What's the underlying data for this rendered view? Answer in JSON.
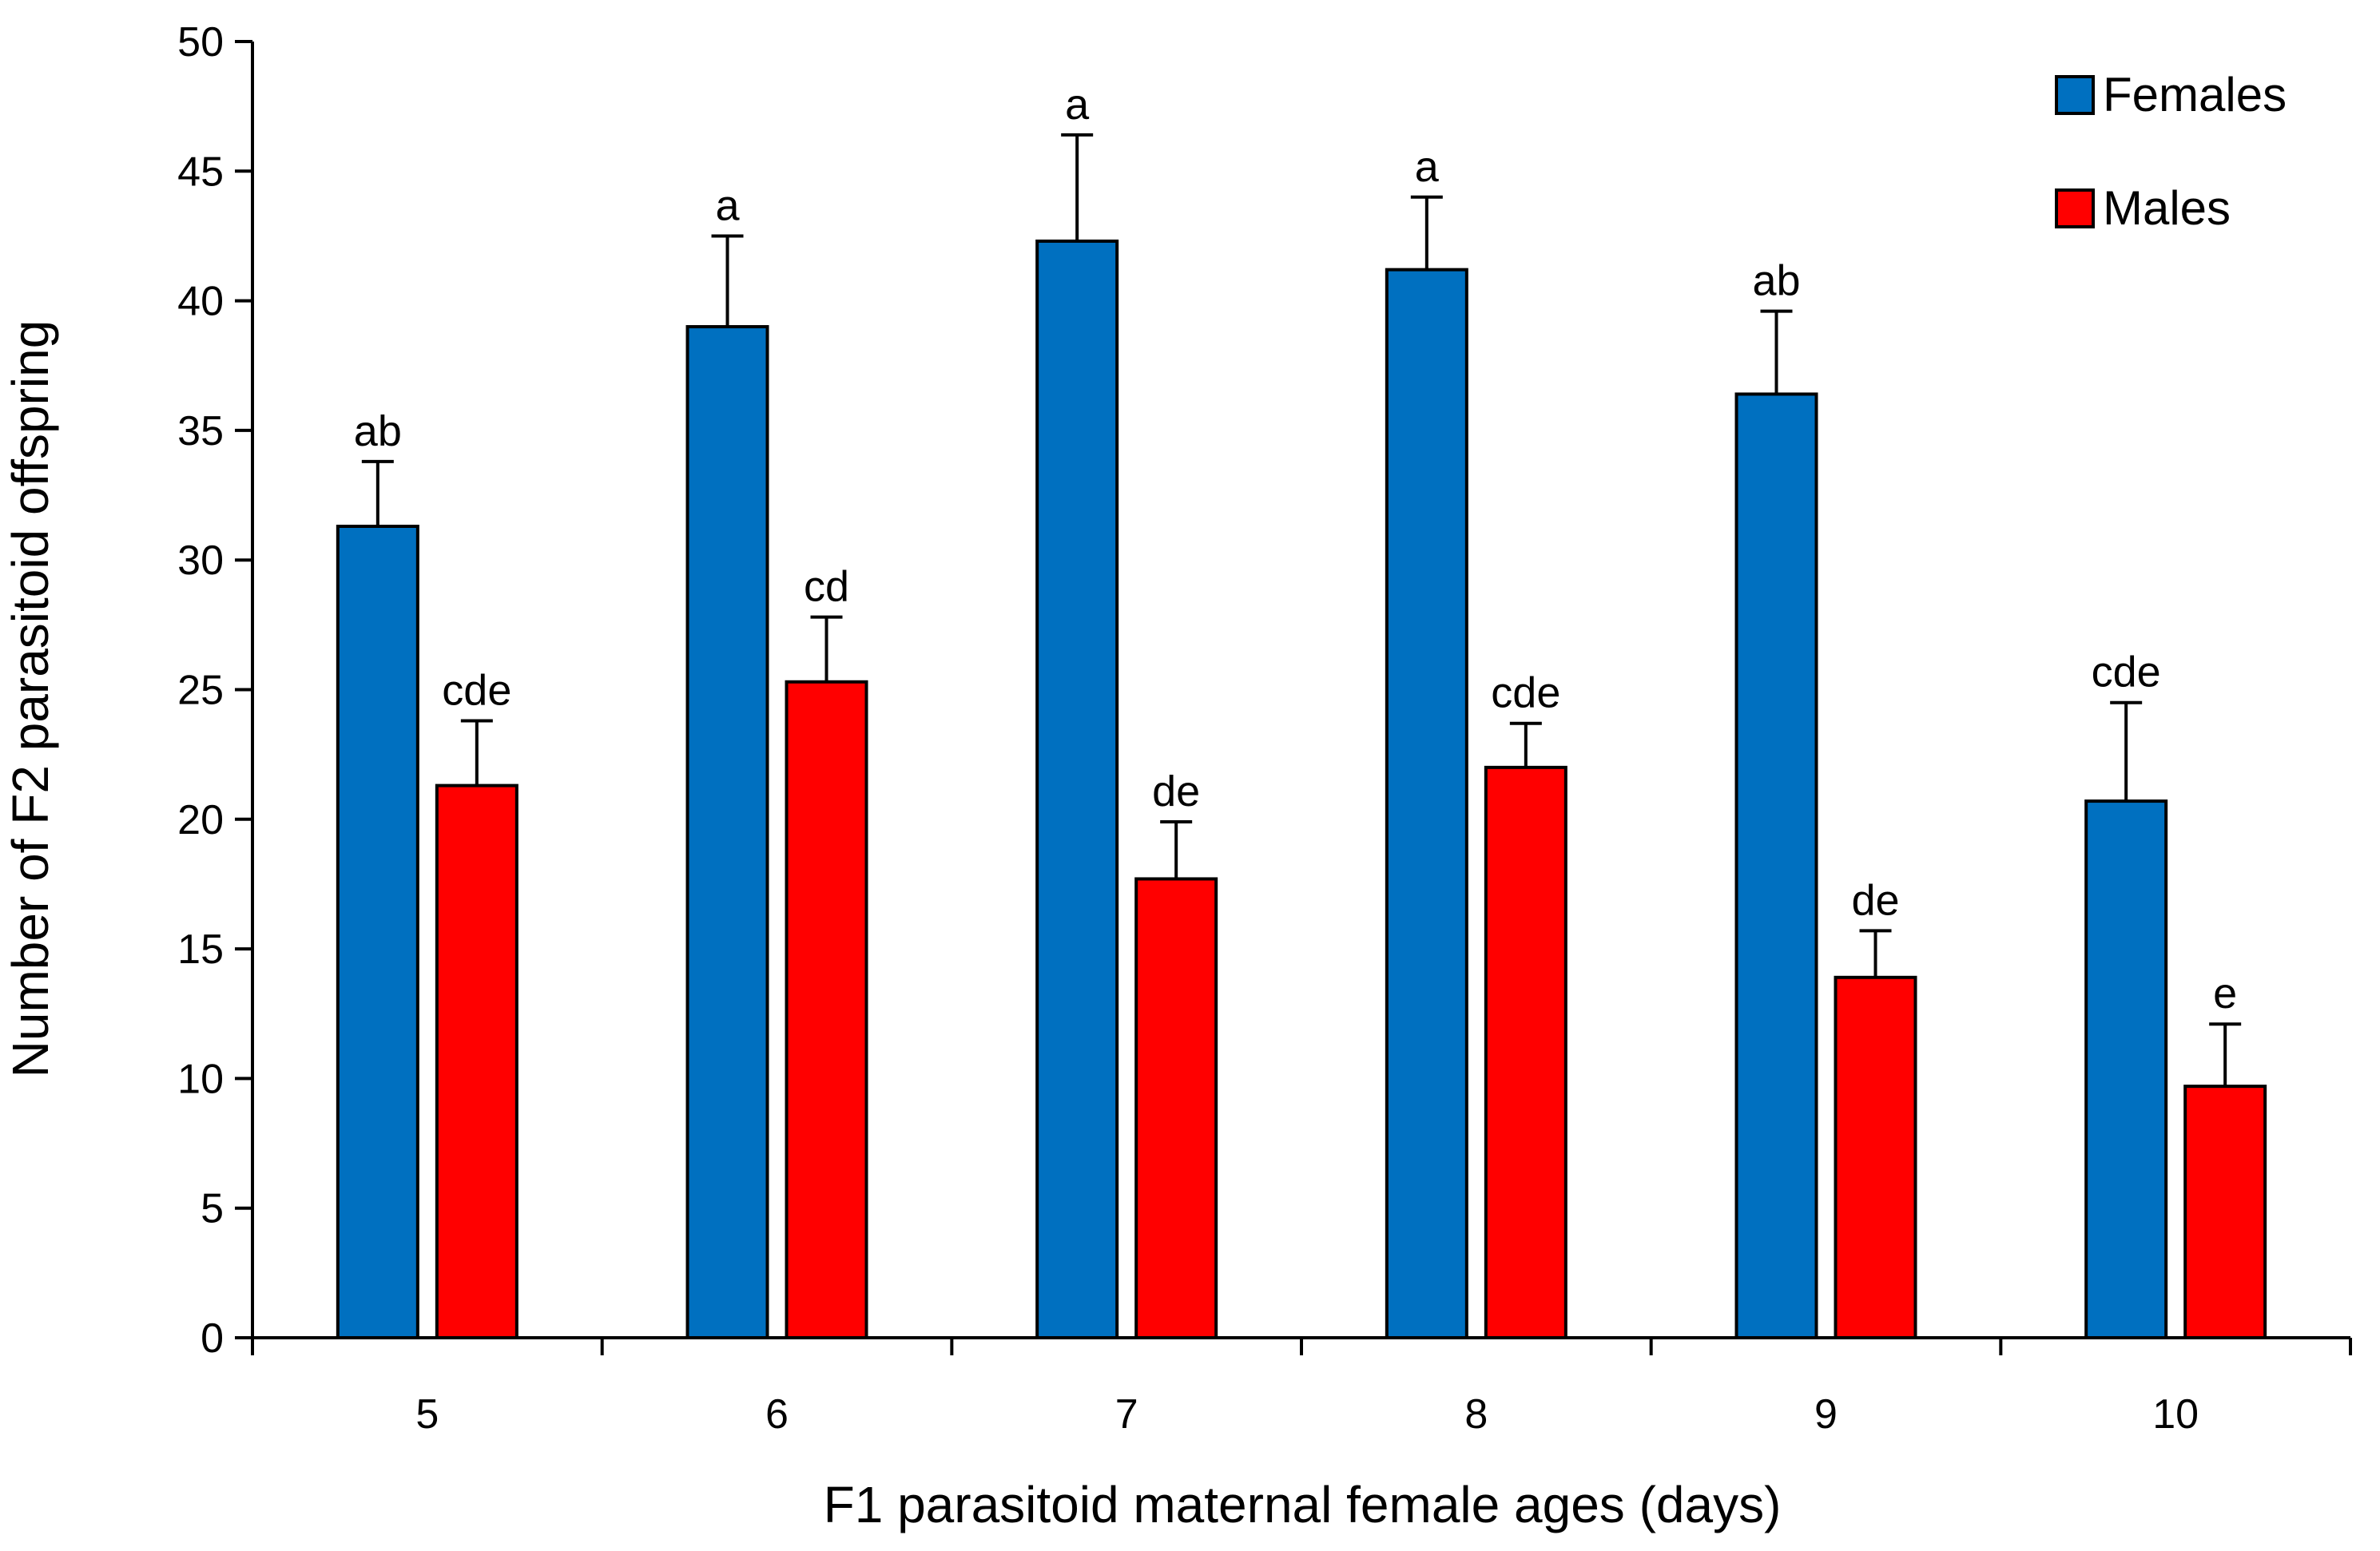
{
  "chart_data": {
    "type": "bar",
    "title": "",
    "xlabel": "F1 parasitoid maternal female ages (days)",
    "ylabel": "Number of F2 parasitoid offspring",
    "ylim": [
      0,
      50
    ],
    "yticks": [
      "0",
      "5",
      "10",
      "15",
      "20",
      "25",
      "30",
      "35",
      "40",
      "45",
      "50"
    ],
    "categories": [
      "5",
      "6",
      "7",
      "8",
      "9",
      "10"
    ],
    "grid": false,
    "legend_position": "top-right",
    "series": [
      {
        "name": "Females",
        "color": "#0070C0",
        "values": [
          31.3,
          39.0,
          42.3,
          41.2,
          36.4,
          20.7
        ],
        "errors": [
          2.5,
          3.5,
          4.1,
          2.8,
          3.2,
          3.8
        ],
        "labels": [
          "ab",
          "a",
          "a",
          "a",
          "ab",
          "cde"
        ]
      },
      {
        "name": "Males",
        "color": "#FF0000",
        "values": [
          21.3,
          25.3,
          17.7,
          22.0,
          13.9,
          9.7
        ],
        "errors": [
          2.5,
          2.5,
          2.2,
          1.7,
          1.8,
          2.4
        ],
        "labels": [
          "cde",
          "cd",
          "de",
          "cde",
          "de",
          "e"
        ]
      }
    ]
  }
}
